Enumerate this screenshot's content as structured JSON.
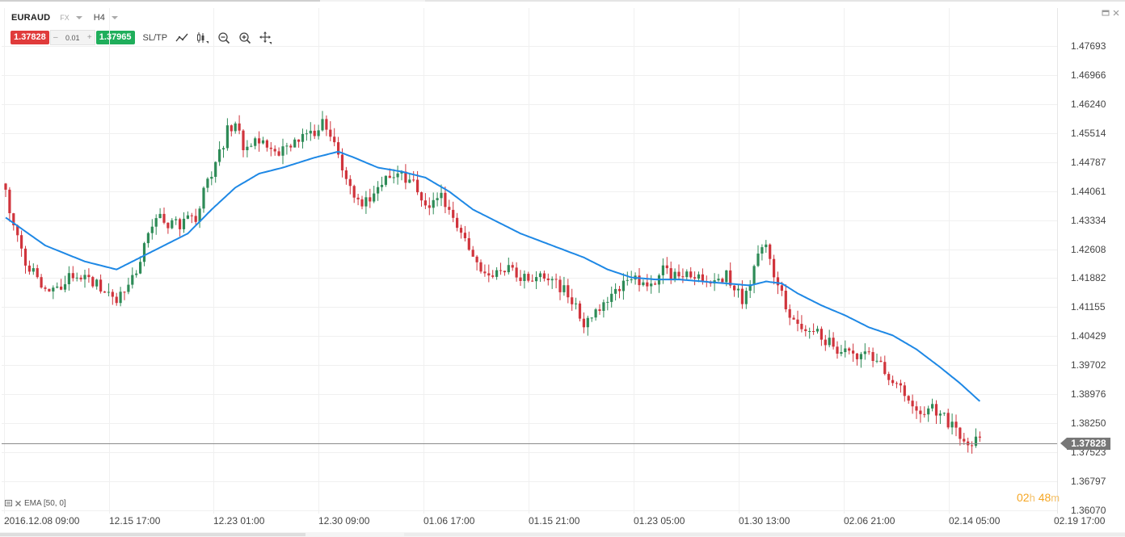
{
  "symbol": "EURAUD",
  "market": "FX",
  "timeframe": "H4",
  "trade": {
    "sell_price": "1.37828",
    "spread": "0.01",
    "buy_price": "1.37965",
    "sltp_label": "SL/TP",
    "spread_minus": "–",
    "spread_plus": "+"
  },
  "toolbar_icons": [
    "line-tool-icon",
    "candles-icon",
    "zoom-out-icon",
    "zoom-in-icon",
    "crosshair-icon"
  ],
  "window_icons": [
    "minimize-icon",
    "close-icon"
  ],
  "indicator": {
    "label": "EMA [50, 0]"
  },
  "current_price": "1.37828",
  "countdown": {
    "hours": "02",
    "h_unit": "h",
    "minutes": "48",
    "m_unit": "m"
  },
  "colors": {
    "bull": "#2e8b57",
    "bear": "#d0343c",
    "ema": "#1e88e5",
    "sell": "#e03b3b",
    "buy": "#1fae5b",
    "countdown": "#f5a623"
  },
  "chart_data": {
    "type": "candlestick",
    "price_ticks": [
      "1.47693",
      "1.46966",
      "1.46240",
      "1.45514",
      "1.44787",
      "1.44061",
      "1.43334",
      "1.42608",
      "1.41882",
      "1.41155",
      "1.40429",
      "1.39702",
      "1.38976",
      "1.38250",
      "1.37523",
      "1.36797",
      "1.36070"
    ],
    "time_ticks": [
      "2016.12.08 09:00",
      "12.15 17:00",
      "12.23 01:00",
      "12.30 09:00",
      "01.06 17:00",
      "01.15 21:00",
      "01.23 05:00",
      "01.30 13:00",
      "02.06 21:00",
      "02.14 05:00",
      "02.19 17:00"
    ],
    "ylim": [
      1.3607,
      1.4833
    ],
    "close_path": [
      [
        0,
        1.4405
      ],
      [
        4,
        1.4245
      ],
      [
        8,
        1.418
      ],
      [
        13,
        1.4155
      ],
      [
        18,
        1.4205
      ],
      [
        23,
        1.4175
      ],
      [
        28,
        1.413
      ],
      [
        33,
        1.4205
      ],
      [
        38,
        1.434
      ],
      [
        43,
        1.432
      ],
      [
        48,
        1.4345
      ],
      [
        52,
        1.4455
      ],
      [
        56,
        1.4555
      ],
      [
        58,
        1.4575
      ],
      [
        60,
        1.451
      ],
      [
        64,
        1.453
      ],
      [
        68,
        1.4505
      ],
      [
        72,
        1.451
      ],
      [
        76,
        1.4545
      ],
      [
        80,
        1.457
      ],
      [
        83,
        1.453
      ],
      [
        86,
        1.443
      ],
      [
        90,
        1.4375
      ],
      [
        94,
        1.442
      ],
      [
        98,
        1.4445
      ],
      [
        102,
        1.4435
      ],
      [
        106,
        1.437
      ],
      [
        110,
        1.4395
      ],
      [
        114,
        1.431
      ],
      [
        118,
        1.4235
      ],
      [
        122,
        1.419
      ],
      [
        126,
        1.421
      ],
      [
        130,
        1.4185
      ],
      [
        134,
        1.419
      ],
      [
        138,
        1.4175
      ],
      [
        142,
        1.4155
      ],
      [
        146,
        1.4065
      ],
      [
        150,
        1.4115
      ],
      [
        154,
        1.4165
      ],
      [
        158,
        1.4185
      ],
      [
        162,
        1.417
      ],
      [
        166,
        1.4205
      ],
      [
        170,
        1.4195
      ],
      [
        174,
        1.4185
      ],
      [
        178,
        1.417
      ],
      [
        182,
        1.4195
      ],
      [
        186,
        1.414
      ],
      [
        190,
        1.424
      ],
      [
        192,
        1.4275
      ],
      [
        194,
        1.42
      ],
      [
        198,
        1.4095
      ],
      [
        202,
        1.406
      ],
      [
        206,
        1.4045
      ],
      [
        210,
        1.4005
      ],
      [
        214,
        1.3985
      ],
      [
        218,
        1.4
      ],
      [
        222,
        1.395
      ],
      [
        226,
        1.3905
      ],
      [
        230,
        1.384
      ],
      [
        234,
        1.3865
      ],
      [
        238,
        1.383
      ],
      [
        241,
        1.378
      ],
      [
        244,
        1.3775
      ],
      [
        246,
        1.3795
      ]
    ],
    "ema_period": 50,
    "ema_path": [
      [
        0,
        1.434
      ],
      [
        10,
        1.427
      ],
      [
        20,
        1.423
      ],
      [
        28,
        1.421
      ],
      [
        34,
        1.424
      ],
      [
        40,
        1.427
      ],
      [
        46,
        1.43
      ],
      [
        52,
        1.436
      ],
      [
        58,
        1.4415
      ],
      [
        64,
        1.445
      ],
      [
        70,
        1.4465
      ],
      [
        78,
        1.449
      ],
      [
        84,
        1.4505
      ],
      [
        88,
        1.449
      ],
      [
        94,
        1.4465
      ],
      [
        100,
        1.4455
      ],
      [
        106,
        1.444
      ],
      [
        112,
        1.4405
      ],
      [
        118,
        1.436
      ],
      [
        124,
        1.433
      ],
      [
        130,
        1.43
      ],
      [
        138,
        1.427
      ],
      [
        146,
        1.424
      ],
      [
        152,
        1.421
      ],
      [
        158,
        1.419
      ],
      [
        164,
        1.4185
      ],
      [
        170,
        1.4185
      ],
      [
        176,
        1.418
      ],
      [
        182,
        1.4175
      ],
      [
        188,
        1.417
      ],
      [
        192,
        1.418
      ],
      [
        196,
        1.4175
      ],
      [
        200,
        1.415
      ],
      [
        206,
        1.412
      ],
      [
        212,
        1.4095
      ],
      [
        218,
        1.4065
      ],
      [
        224,
        1.4045
      ],
      [
        230,
        1.401
      ],
      [
        236,
        1.3965
      ],
      [
        241,
        1.3925
      ],
      [
        246,
        1.388
      ]
    ]
  }
}
